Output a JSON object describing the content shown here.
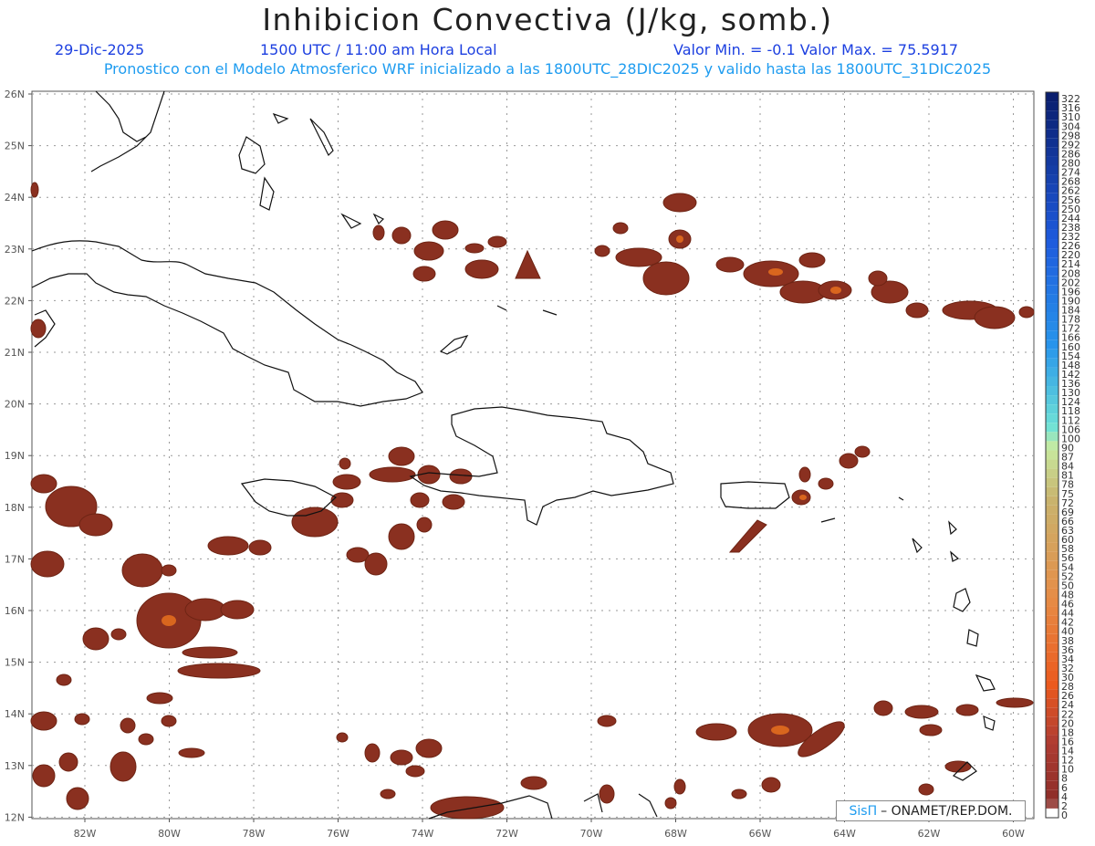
{
  "title": "Inhibicion Convectiva (J/kg, somb.)",
  "date": "29-Dic-2025",
  "time": "1500 UTC / 11:00 am Hora Local",
  "stats": "Valor Min. = -0.1  Valor Max. = 75.5917",
  "forecast_line": "Pronostico con el Modelo Atmosferico WRF inicializado a las 1800UTC_28DIC2025 y valido hasta las  1800UTC_31DIC2025",
  "credit": {
    "logo": "SisΠ",
    "text": "– ONAMET/REP.DOM."
  },
  "map": {
    "lat_labels": [
      "26N",
      "25N",
      "24N",
      "23N",
      "22N",
      "21N",
      "20N",
      "19N",
      "18N",
      "17N",
      "16N",
      "15N",
      "14N",
      "13N",
      "12N"
    ],
    "lon_labels": [
      "82W",
      "80W",
      "78W",
      "76W",
      "74W",
      "72W",
      "70W",
      "68W",
      "66W",
      "64W",
      "62W",
      "60W"
    ],
    "grid": "dotted"
  },
  "colorbar": {
    "labels": [
      "322",
      "316",
      "310",
      "304",
      "298",
      "292",
      "286",
      "280",
      "274",
      "268",
      "262",
      "256",
      "250",
      "244",
      "238",
      "232",
      "226",
      "220",
      "214",
      "208",
      "202",
      "196",
      "190",
      "184",
      "178",
      "172",
      "166",
      "160",
      "154",
      "148",
      "142",
      "136",
      "130",
      "124",
      "118",
      "112",
      "106",
      "100",
      "90",
      "87",
      "84",
      "81",
      "78",
      "75",
      "72",
      "69",
      "66",
      "63",
      "60",
      "58",
      "56",
      "54",
      "52",
      "50",
      "48",
      "46",
      "44",
      "42",
      "40",
      "38",
      "36",
      "34",
      "32",
      "30",
      "28",
      "26",
      "24",
      "22",
      "20",
      "18",
      "16",
      "14",
      "12",
      "10",
      "8",
      "6",
      "4",
      "2",
      "0"
    ]
  },
  "colors": {
    "fill": "#8a3020",
    "fill_hot": "#d9661e",
    "title_blue": "#1c3fe0",
    "subtitle_cyan": "#1e9cf0"
  }
}
